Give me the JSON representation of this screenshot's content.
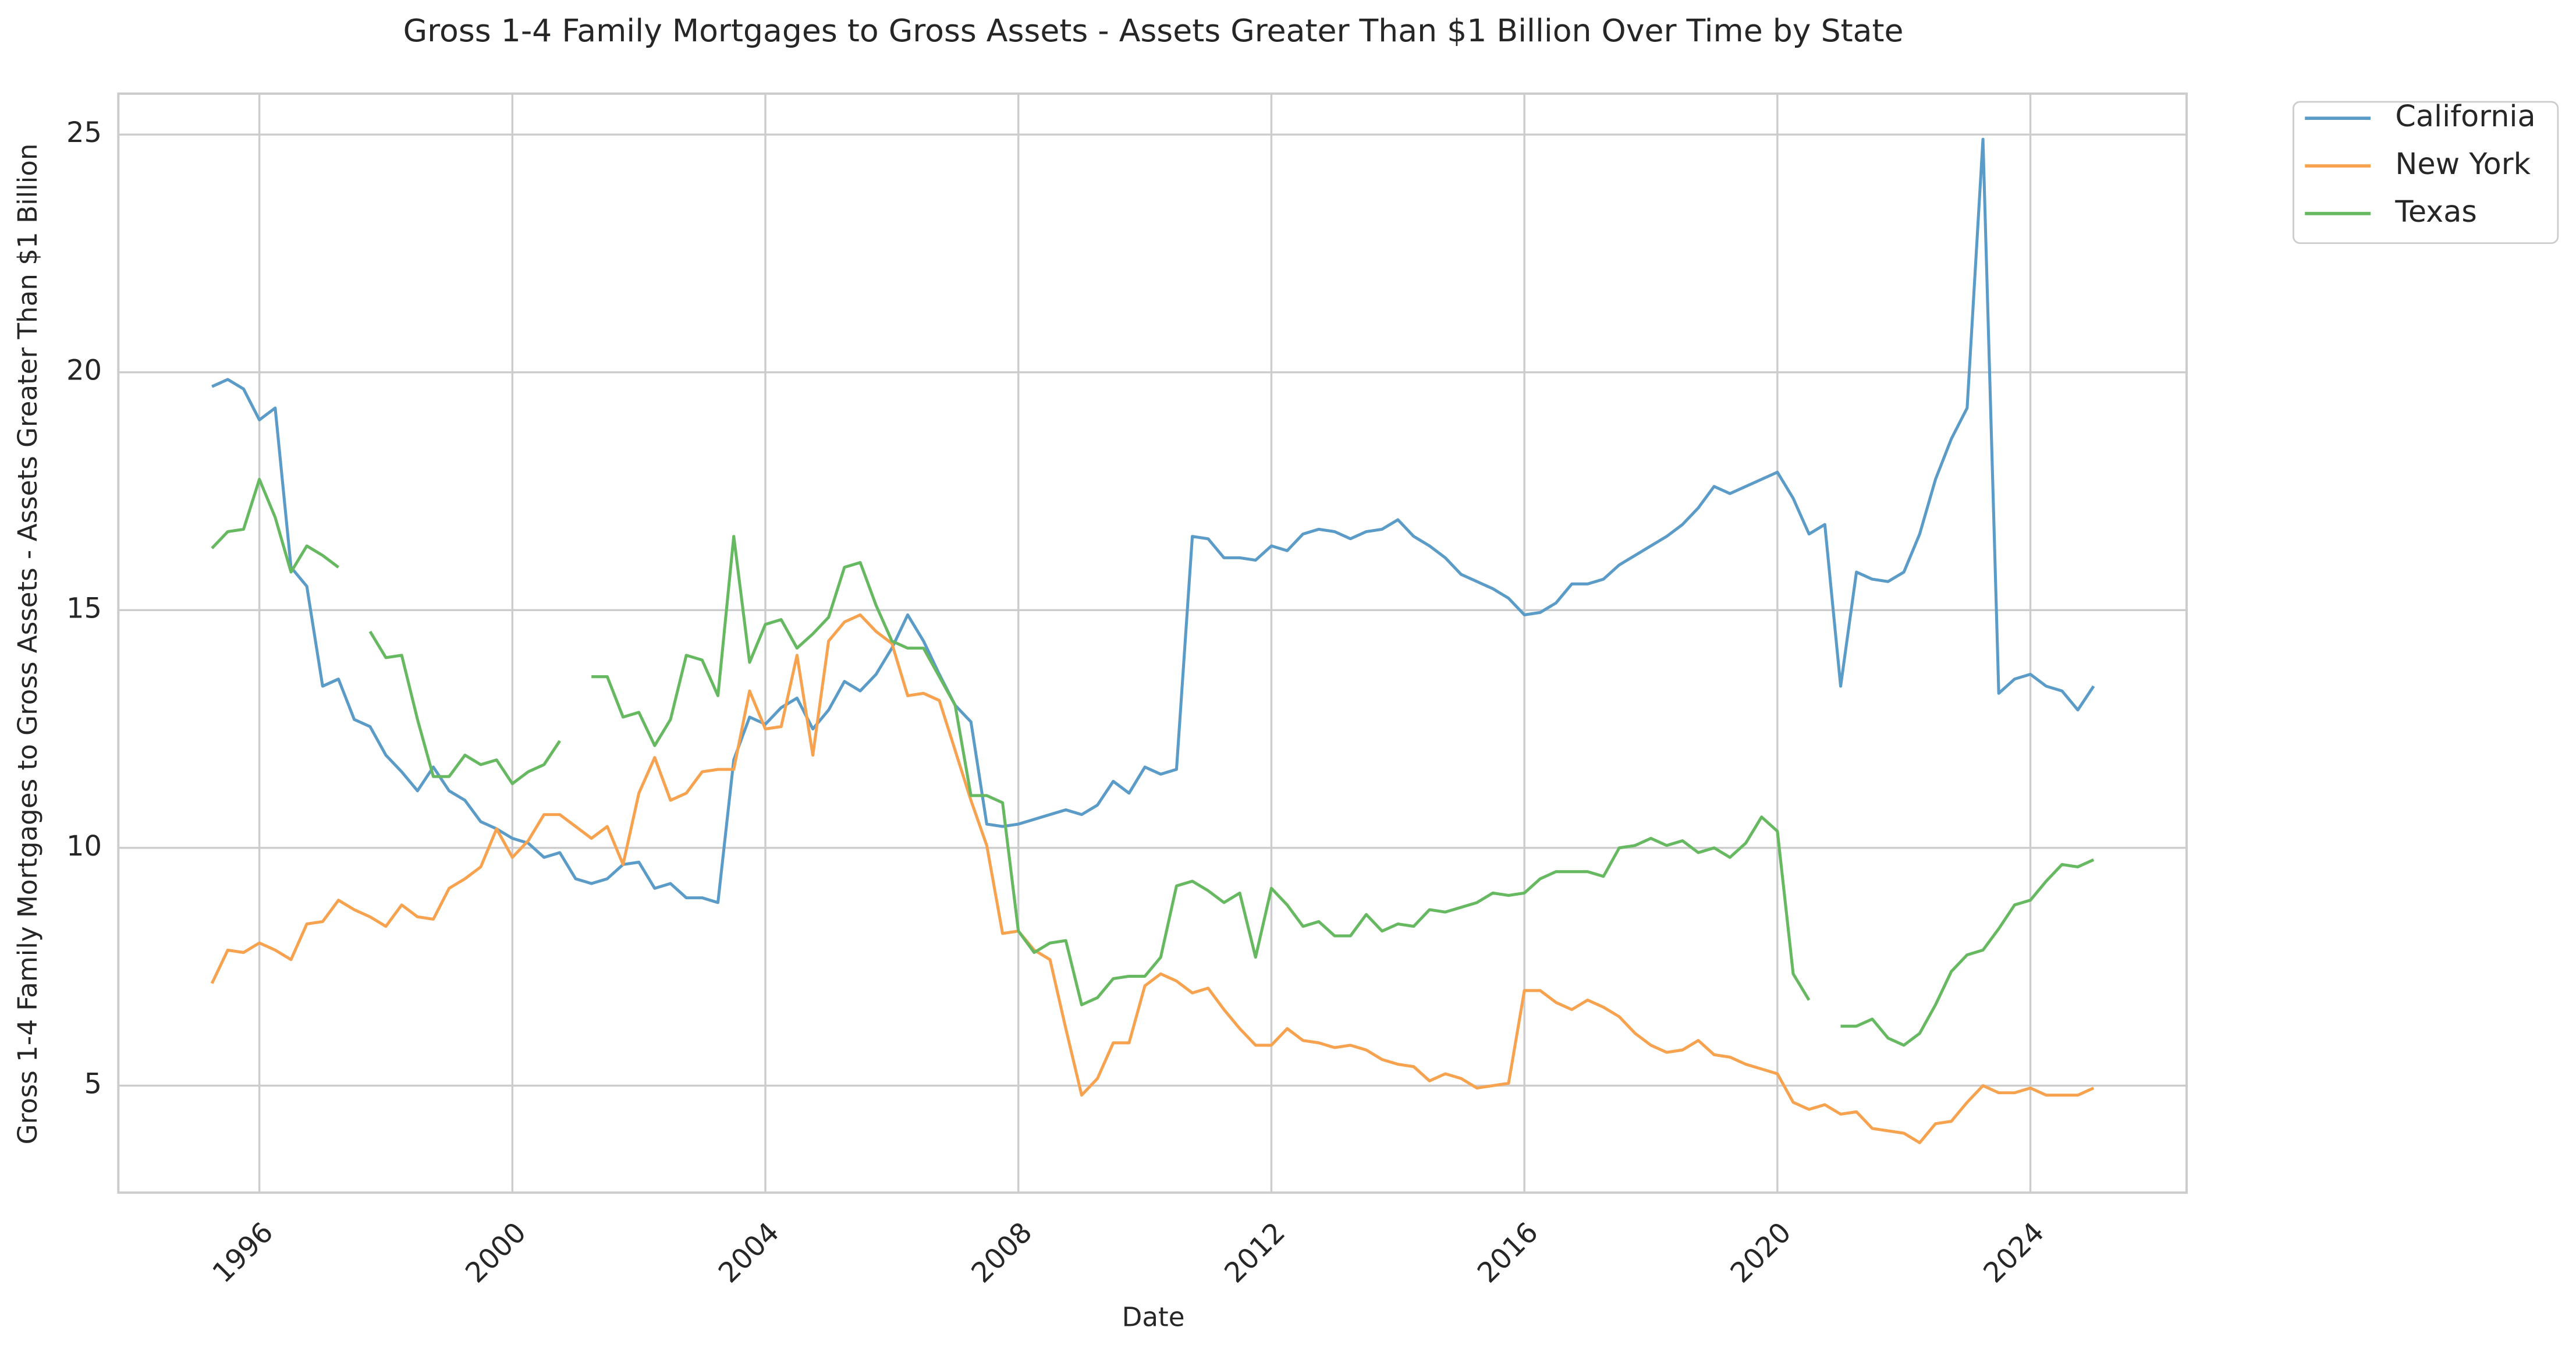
{
  "chart_data": {
    "type": "line",
    "title": "Gross 1-4 Family Mortgages to Gross Assets - Assets Greater Than $1 Billion Over Time by State",
    "x_label": "Date",
    "y_label": "Gross 1-4 Family Mortgages to Gross Assets - Assets Greater Than $1 Billion",
    "x": [
      1995.25,
      1995.5,
      1995.75,
      1996,
      1996.25,
      1996.5,
      1996.75,
      1997,
      1997.25,
      1997.5,
      1997.75,
      1998,
      1998.25,
      1998.5,
      1998.75,
      1999,
      1999.25,
      1999.5,
      1999.75,
      2000,
      2000.25,
      2000.5,
      2000.75,
      2001,
      2001.25,
      2001.5,
      2001.75,
      2002,
      2002.25,
      2002.5,
      2002.75,
      2003,
      2003.25,
      2003.5,
      2003.75,
      2004,
      2004.25,
      2004.5,
      2004.75,
      2005,
      2005.25,
      2005.5,
      2005.75,
      2006,
      2006.25,
      2006.5,
      2006.75,
      2007,
      2007.25,
      2007.5,
      2007.75,
      2008,
      2008.25,
      2008.5,
      2008.75,
      2009,
      2009.25,
      2009.5,
      2009.75,
      2010,
      2010.25,
      2010.5,
      2010.75,
      2011,
      2011.25,
      2011.5,
      2011.75,
      2012,
      2012.25,
      2012.5,
      2012.75,
      2013,
      2013.25,
      2013.5,
      2013.75,
      2014,
      2014.25,
      2014.5,
      2014.75,
      2015,
      2015.25,
      2015.5,
      2015.75,
      2016,
      2016.25,
      2016.5,
      2016.75,
      2017,
      2017.25,
      2017.5,
      2017.75,
      2018,
      2018.25,
      2018.5,
      2018.75,
      2019,
      2019.25,
      2019.5,
      2019.75,
      2020,
      2020.25,
      2020.5,
      2020.75,
      2021,
      2021.25,
      2021.5,
      2021.75,
      2022,
      2022.25,
      2022.5,
      2022.75,
      2023,
      2023.25,
      2023.5,
      2023.75,
      2024,
      2024.25,
      2024.5,
      2024.75,
      2025
    ],
    "series": [
      {
        "name": "California",
        "color": "#5b9bc8",
        "values": [
          19.7,
          19.85,
          19.65,
          19.0,
          19.25,
          15.9,
          15.5,
          13.4,
          13.55,
          12.7,
          12.55,
          11.95,
          11.6,
          11.2,
          11.7,
          11.2,
          11.0,
          10.55,
          10.4,
          10.2,
          10.1,
          9.8,
          9.9,
          9.35,
          9.25,
          9.35,
          9.65,
          9.7,
          9.15,
          9.25,
          8.95,
          8.95,
          8.85,
          11.85,
          12.75,
          12.6,
          12.95,
          13.15,
          12.5,
          12.9,
          13.5,
          13.3,
          13.65,
          14.2,
          14.9,
          14.35,
          13.65,
          13.0,
          12.65,
          10.5,
          10.45,
          10.5,
          10.6,
          10.7,
          10.8,
          10.7,
          10.9,
          11.4,
          11.15,
          11.7,
          11.55,
          11.65,
          16.55,
          16.5,
          16.1,
          16.1,
          16.05,
          16.35,
          16.25,
          16.6,
          16.7,
          16.65,
          16.5,
          16.65,
          16.7,
          16.9,
          16.55,
          16.35,
          16.1,
          15.75,
          15.6,
          15.45,
          15.25,
          14.9,
          14.95,
          15.15,
          15.55,
          15.55,
          15.65,
          15.95,
          16.15,
          16.35,
          16.55,
          16.8,
          17.15,
          17.6,
          17.45,
          17.6,
          17.75,
          17.9,
          17.35,
          16.6,
          16.8,
          13.4,
          15.8,
          15.65,
          15.6,
          15.8,
          16.6,
          17.75,
          18.6,
          19.25,
          24.9,
          13.25,
          13.55,
          13.65,
          13.4,
          13.3,
          12.9,
          13.4
        ]
      },
      {
        "name": "New York",
        "color": "#f7a24f",
        "values": [
          7.15,
          7.85,
          7.8,
          8.0,
          7.85,
          7.65,
          8.4,
          8.45,
          8.9,
          8.7,
          8.55,
          8.35,
          8.8,
          8.55,
          8.5,
          9.15,
          9.35,
          9.6,
          10.4,
          9.8,
          10.15,
          10.7,
          10.7,
          10.45,
          10.2,
          10.45,
          9.65,
          11.15,
          11.9,
          11.0,
          11.15,
          11.6,
          11.65,
          11.65,
          13.3,
          12.5,
          12.55,
          14.05,
          11.95,
          14.35,
          14.75,
          14.9,
          14.55,
          14.3,
          13.2,
          13.25,
          13.1,
          12.05,
          11.0,
          10.05,
          8.2,
          8.25,
          7.85,
          7.65,
          6.2,
          4.8,
          5.15,
          5.9,
          5.9,
          7.1,
          7.35,
          7.2,
          6.95,
          7.05,
          6.6,
          6.2,
          5.85,
          5.85,
          6.2,
          5.95,
          5.9,
          5.8,
          5.85,
          5.75,
          5.55,
          5.45,
          5.4,
          5.1,
          5.25,
          5.15,
          4.95,
          5.0,
          5.05,
          7.0,
          7.0,
          6.75,
          6.6,
          6.8,
          6.65,
          6.45,
          6.1,
          5.85,
          5.7,
          5.75,
          5.95,
          5.65,
          5.6,
          5.45,
          5.35,
          5.25,
          4.65,
          4.5,
          4.6,
          4.4,
          4.45,
          4.1,
          4.05,
          4.0,
          3.8,
          4.2,
          4.25,
          4.65,
          5.0,
          4.85,
          4.85,
          4.95,
          4.8,
          4.8,
          4.8,
          4.95
        ]
      },
      {
        "name": "Texas",
        "color": "#66b960",
        "values": [
          16.3,
          16.65,
          16.7,
          17.75,
          16.95,
          15.8,
          16.35,
          16.15,
          15.9,
          null,
          14.55,
          14.0,
          14.05,
          12.7,
          11.5,
          11.5,
          11.95,
          11.75,
          11.85,
          11.35,
          11.6,
          11.75,
          12.25,
          null,
          13.6,
          13.6,
          12.75,
          12.85,
          12.15,
          12.7,
          14.05,
          13.95,
          13.2,
          16.55,
          13.9,
          14.7,
          14.8,
          14.2,
          14.5,
          14.85,
          15.9,
          16.0,
          15.1,
          14.35,
          14.2,
          14.2,
          13.6,
          13.0,
          11.1,
          11.1,
          10.95,
          8.25,
          7.8,
          8.0,
          8.05,
          6.7,
          6.85,
          7.25,
          7.3,
          7.3,
          7.7,
          9.2,
          9.3,
          9.1,
          8.85,
          9.05,
          7.7,
          9.15,
          8.8,
          8.35,
          8.45,
          8.15,
          8.15,
          8.6,
          8.25,
          8.4,
          8.35,
          8.7,
          8.65,
          8.75,
          8.85,
          9.05,
          9.0,
          9.05,
          9.35,
          9.5,
          9.5,
          9.5,
          9.4,
          10.0,
          10.05,
          10.2,
          10.05,
          10.15,
          9.9,
          10.0,
          9.8,
          10.1,
          10.65,
          10.35,
          7.35,
          6.8,
          null,
          6.25,
          6.25,
          6.4,
          6.0,
          5.85,
          6.1,
          6.7,
          7.4,
          7.75,
          7.85,
          8.3,
          8.8,
          8.9,
          9.3,
          9.65,
          9.6,
          9.75
        ]
      }
    ],
    "xlim": [
      1993.77,
      2026.47
    ],
    "xticks": [
      1996,
      2000,
      2004,
      2008,
      2012,
      2016,
      2020,
      2024
    ],
    "ylim": [
      2.75,
      25.86
    ],
    "yticks": [
      5,
      10,
      15,
      20,
      25
    ],
    "grid": true,
    "legend": "outside upper right"
  }
}
